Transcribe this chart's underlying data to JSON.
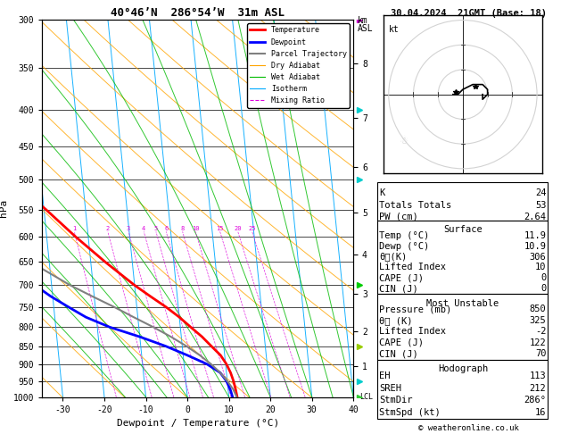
{
  "title_left": "40°46’N  286°54’W  31m ASL",
  "title_right": "30.04.2024  21GMT (Base: 18)",
  "xlabel": "Dewpoint / Temperature (°C)",
  "ylabel_left": "hPa",
  "temp_color": "#ff0000",
  "dewp_color": "#0000ff",
  "parcel_color": "#808080",
  "dry_adiabat_color": "#ffa500",
  "wet_adiabat_color": "#00bb00",
  "isotherm_color": "#00aaff",
  "mixing_ratio_color": "#dd00dd",
  "background_color": "#ffffff",
  "xlim": [
    -35,
    40
  ],
  "ylim_log": [
    300,
    1000
  ],
  "pressure_ticks": [
    300,
    350,
    400,
    450,
    500,
    550,
    600,
    650,
    700,
    750,
    800,
    850,
    900,
    950,
    1000
  ],
  "mixing_ratio_values": [
    1,
    2,
    3,
    4,
    5,
    6,
    8,
    10,
    15,
    20,
    25
  ],
  "km_ticks": [
    1,
    2,
    3,
    4,
    5,
    6,
    7,
    8
  ],
  "km_pressures": [
    905,
    810,
    720,
    635,
    555,
    480,
    410,
    345
  ],
  "temp_profile": {
    "pressure": [
      1000,
      975,
      950,
      925,
      900,
      875,
      850,
      825,
      800,
      775,
      750,
      725,
      700,
      650,
      600,
      550,
      500,
      450,
      400,
      350,
      300
    ],
    "temp": [
      12.0,
      11.8,
      11.5,
      11.0,
      10.2,
      9.0,
      7.0,
      5.0,
      2.5,
      0.0,
      -3.0,
      -6.5,
      -10.0,
      -16.5,
      -23.0,
      -29.5,
      -37.0,
      -43.5,
      -50.5,
      -57.0,
      -62.5
    ]
  },
  "dewp_profile": {
    "pressure": [
      1000,
      975,
      950,
      925,
      900,
      875,
      850,
      825,
      800,
      775,
      750,
      725,
      700,
      650,
      600,
      550,
      500,
      450,
      400,
      350,
      300
    ],
    "dewp": [
      10.9,
      10.5,
      9.8,
      8.5,
      5.5,
      1.0,
      -4.0,
      -10.0,
      -17.0,
      -22.5,
      -26.5,
      -30.5,
      -34.0,
      -39.5,
      -44.5,
      -48.5,
      -52.0,
      -54.5,
      -56.5,
      -57.5,
      -58.0
    ]
  },
  "parcel_profile": {
    "pressure": [
      1000,
      975,
      950,
      925,
      900,
      875,
      850,
      825,
      800,
      775,
      750,
      725,
      700,
      650,
      600,
      550,
      500,
      450,
      400,
      350,
      300
    ],
    "temp": [
      11.9,
      11.2,
      10.0,
      8.5,
      6.5,
      4.0,
      1.0,
      -2.5,
      -6.5,
      -11.0,
      -15.5,
      -20.5,
      -25.5,
      -34.5,
      -42.5,
      -49.5,
      -55.5,
      -60.5,
      -64.5,
      -67.5,
      -70.0
    ]
  },
  "stats": {
    "K": 24,
    "Totals_Totals": 53,
    "PW_cm": 2.64,
    "Surface_Temp": 11.9,
    "Surface_Dewp": 10.9,
    "Surface_theta_e": 306,
    "Surface_LI": 10,
    "Surface_CAPE": 0,
    "Surface_CIN": 0,
    "MU_Pressure": 850,
    "MU_theta_e": 325,
    "MU_LI": -2,
    "MU_CAPE": 122,
    "MU_CIN": 70,
    "EH": 113,
    "SREH": 212,
    "StmDir": 286,
    "StmSpd": 16
  },
  "copyright": "© weatheronline.co.uk",
  "skew_factor": 17.5,
  "right_panel_markers": {
    "pressures": [
      300,
      400,
      500,
      700,
      850,
      950,
      1000
    ],
    "colors": [
      "#cc00cc",
      "#00cccc",
      "#00cccc",
      "#00cc00",
      "#99cc00",
      "#00cccc",
      "#33cc33"
    ]
  }
}
